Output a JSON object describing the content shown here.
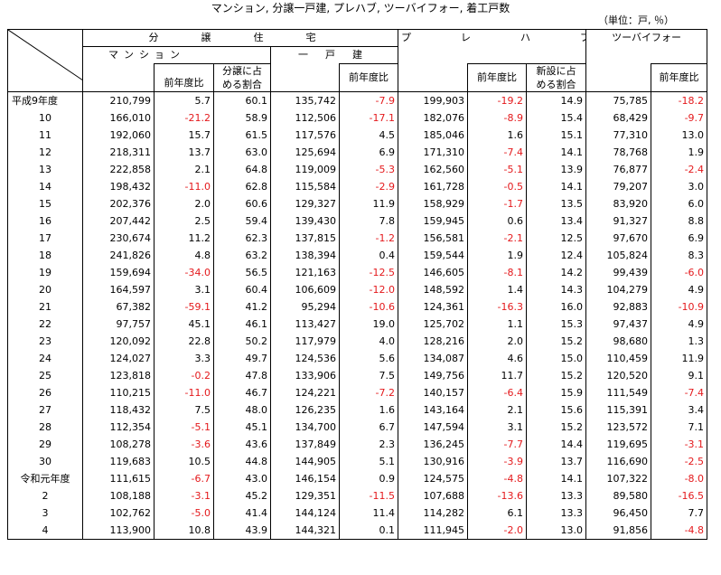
{
  "title": "マンション, 分譲一戸建, プレハブ, ツーバイフォー, 着工戸数",
  "unit": "（単位：戸, ％）",
  "headers": {
    "bunjo": "分　譲　住　宅",
    "mansion": "マンション",
    "ikkodate": "一　戸　建",
    "prefab": "プ　レ　ハ　ブ",
    "twobyfour": "ツーバイフォー",
    "yoy": "前年度比",
    "share_line1": "分譲に占",
    "share_line2": "める割合",
    "new_line1": "新設に占",
    "new_line2": "める割合"
  },
  "rows": [
    {
      "year": "平成9年度",
      "m": "210,799",
      "my": "5.7",
      "ms": "60.1",
      "k": "135,742",
      "ky": "-7.9",
      "p": "199,903",
      "py": "-19.2",
      "ps": "14.9",
      "t": "75,785",
      "ty": "-18.2"
    },
    {
      "year": "10",
      "m": "166,010",
      "my": "-21.2",
      "ms": "58.9",
      "k": "112,506",
      "ky": "-17.1",
      "p": "182,076",
      "py": "-8.9",
      "ps": "15.4",
      "t": "68,429",
      "ty": "-9.7"
    },
    {
      "year": "11",
      "m": "192,060",
      "my": "15.7",
      "ms": "61.5",
      "k": "117,576",
      "ky": "4.5",
      "p": "185,046",
      "py": "1.6",
      "ps": "15.1",
      "t": "77,310",
      "ty": "13.0"
    },
    {
      "year": "12",
      "m": "218,311",
      "my": "13.7",
      "ms": "63.0",
      "k": "125,694",
      "ky": "6.9",
      "p": "171,310",
      "py": "-7.4",
      "ps": "14.1",
      "t": "78,768",
      "ty": "1.9"
    },
    {
      "year": "13",
      "m": "222,858",
      "my": "2.1",
      "ms": "64.8",
      "k": "119,009",
      "ky": "-5.3",
      "p": "162,560",
      "py": "-5.1",
      "ps": "13.9",
      "t": "76,877",
      "ty": "-2.4"
    },
    {
      "year": "14",
      "m": "198,432",
      "my": "-11.0",
      "ms": "62.8",
      "k": "115,584",
      "ky": "-2.9",
      "p": "161,728",
      "py": "-0.5",
      "ps": "14.1",
      "t": "79,207",
      "ty": "3.0"
    },
    {
      "year": "15",
      "m": "202,376",
      "my": "2.0",
      "ms": "60.6",
      "k": "129,327",
      "ky": "11.9",
      "p": "158,929",
      "py": "-1.7",
      "ps": "13.5",
      "t": "83,920",
      "ty": "6.0"
    },
    {
      "year": "16",
      "m": "207,442",
      "my": "2.5",
      "ms": "59.4",
      "k": "139,430",
      "ky": "7.8",
      "p": "159,945",
      "py": "0.6",
      "ps": "13.4",
      "t": "91,327",
      "ty": "8.8"
    },
    {
      "year": "17",
      "m": "230,674",
      "my": "11.2",
      "ms": "62.3",
      "k": "137,815",
      "ky": "-1.2",
      "p": "156,581",
      "py": "-2.1",
      "ps": "12.5",
      "t": "97,670",
      "ty": "6.9"
    },
    {
      "year": "18",
      "m": "241,826",
      "my": "4.8",
      "ms": "63.2",
      "k": "138,394",
      "ky": "0.4",
      "p": "159,544",
      "py": "1.9",
      "ps": "12.4",
      "t": "105,824",
      "ty": "8.3"
    },
    {
      "year": "19",
      "m": "159,694",
      "my": "-34.0",
      "ms": "56.5",
      "k": "121,163",
      "ky": "-12.5",
      "p": "146,605",
      "py": "-8.1",
      "ps": "14.2",
      "t": "99,439",
      "ty": "-6.0"
    },
    {
      "year": "20",
      "m": "164,597",
      "my": "3.1",
      "ms": "60.4",
      "k": "106,609",
      "ky": "-12.0",
      "p": "148,592",
      "py": "1.4",
      "ps": "14.3",
      "t": "104,279",
      "ty": "4.9"
    },
    {
      "year": "21",
      "m": "67,382",
      "my": "-59.1",
      "ms": "41.2",
      "k": "95,294",
      "ky": "-10.6",
      "p": "124,361",
      "py": "-16.3",
      "ps": "16.0",
      "t": "92,883",
      "ty": "-10.9"
    },
    {
      "year": "22",
      "m": "97,757",
      "my": "45.1",
      "ms": "46.1",
      "k": "113,427",
      "ky": "19.0",
      "p": "125,702",
      "py": "1.1",
      "ps": "15.3",
      "t": "97,437",
      "ty": "4.9"
    },
    {
      "year": "23",
      "m": "120,092",
      "my": "22.8",
      "ms": "50.2",
      "k": "117,979",
      "ky": "4.0",
      "p": "128,216",
      "py": "2.0",
      "ps": "15.2",
      "t": "98,680",
      "ty": "1.3"
    },
    {
      "year": "24",
      "m": "124,027",
      "my": "3.3",
      "ms": "49.7",
      "k": "124,536",
      "ky": "5.6",
      "p": "134,087",
      "py": "4.6",
      "ps": "15.0",
      "t": "110,459",
      "ty": "11.9"
    },
    {
      "year": "25",
      "m": "123,818",
      "my": "-0.2",
      "ms": "47.8",
      "k": "133,906",
      "ky": "7.5",
      "p": "149,756",
      "py": "11.7",
      "ps": "15.2",
      "t": "120,520",
      "ty": "9.1"
    },
    {
      "year": "26",
      "m": "110,215",
      "my": "-11.0",
      "ms": "46.7",
      "k": "124,221",
      "ky": "-7.2",
      "p": "140,157",
      "py": "-6.4",
      "ps": "15.9",
      "t": "111,549",
      "ty": "-7.4"
    },
    {
      "year": "27",
      "m": "118,432",
      "my": "7.5",
      "ms": "48.0",
      "k": "126,235",
      "ky": "1.6",
      "p": "143,164",
      "py": "2.1",
      "ps": "15.6",
      "t": "115,391",
      "ty": "3.4"
    },
    {
      "year": "28",
      "m": "112,354",
      "my": "-5.1",
      "ms": "45.1",
      "k": "134,700",
      "ky": "6.7",
      "p": "147,594",
      "py": "3.1",
      "ps": "15.2",
      "t": "123,572",
      "ty": "7.1"
    },
    {
      "year": "29",
      "m": "108,278",
      "my": "-3.6",
      "ms": "43.6",
      "k": "137,849",
      "ky": "2.3",
      "p": "136,245",
      "py": "-7.7",
      "ps": "14.4",
      "t": "119,695",
      "ty": "-3.1"
    },
    {
      "year": "30",
      "m": "119,683",
      "my": "10.5",
      "ms": "44.8",
      "k": "144,905",
      "ky": "5.1",
      "p": "130,916",
      "py": "-3.9",
      "ps": "13.7",
      "t": "116,690",
      "ty": "-2.5"
    },
    {
      "year": "令和元年度",
      "m": "111,615",
      "my": "-6.7",
      "ms": "43.0",
      "k": "146,154",
      "ky": "0.9",
      "p": "124,575",
      "py": "-4.8",
      "ps": "14.1",
      "t": "107,322",
      "ty": "-8.0"
    },
    {
      "year": "2",
      "m": "108,188",
      "my": "-3.1",
      "ms": "45.2",
      "k": "129,351",
      "ky": "-11.5",
      "p": "107,688",
      "py": "-13.6",
      "ps": "13.3",
      "t": "89,580",
      "ty": "-16.5"
    },
    {
      "year": "3",
      "m": "102,762",
      "my": "-5.0",
      "ms": "41.4",
      "k": "144,124",
      "ky": "11.4",
      "p": "114,282",
      "py": "6.1",
      "ps": "13.3",
      "t": "96,450",
      "ty": "7.7"
    },
    {
      "year": "4",
      "m": "113,900",
      "my": "10.8",
      "ms": "43.9",
      "k": "144,321",
      "ky": "0.1",
      "p": "111,945",
      "py": "-2.0",
      "ps": "13.0",
      "t": "91,856",
      "ty": "-4.8"
    }
  ]
}
